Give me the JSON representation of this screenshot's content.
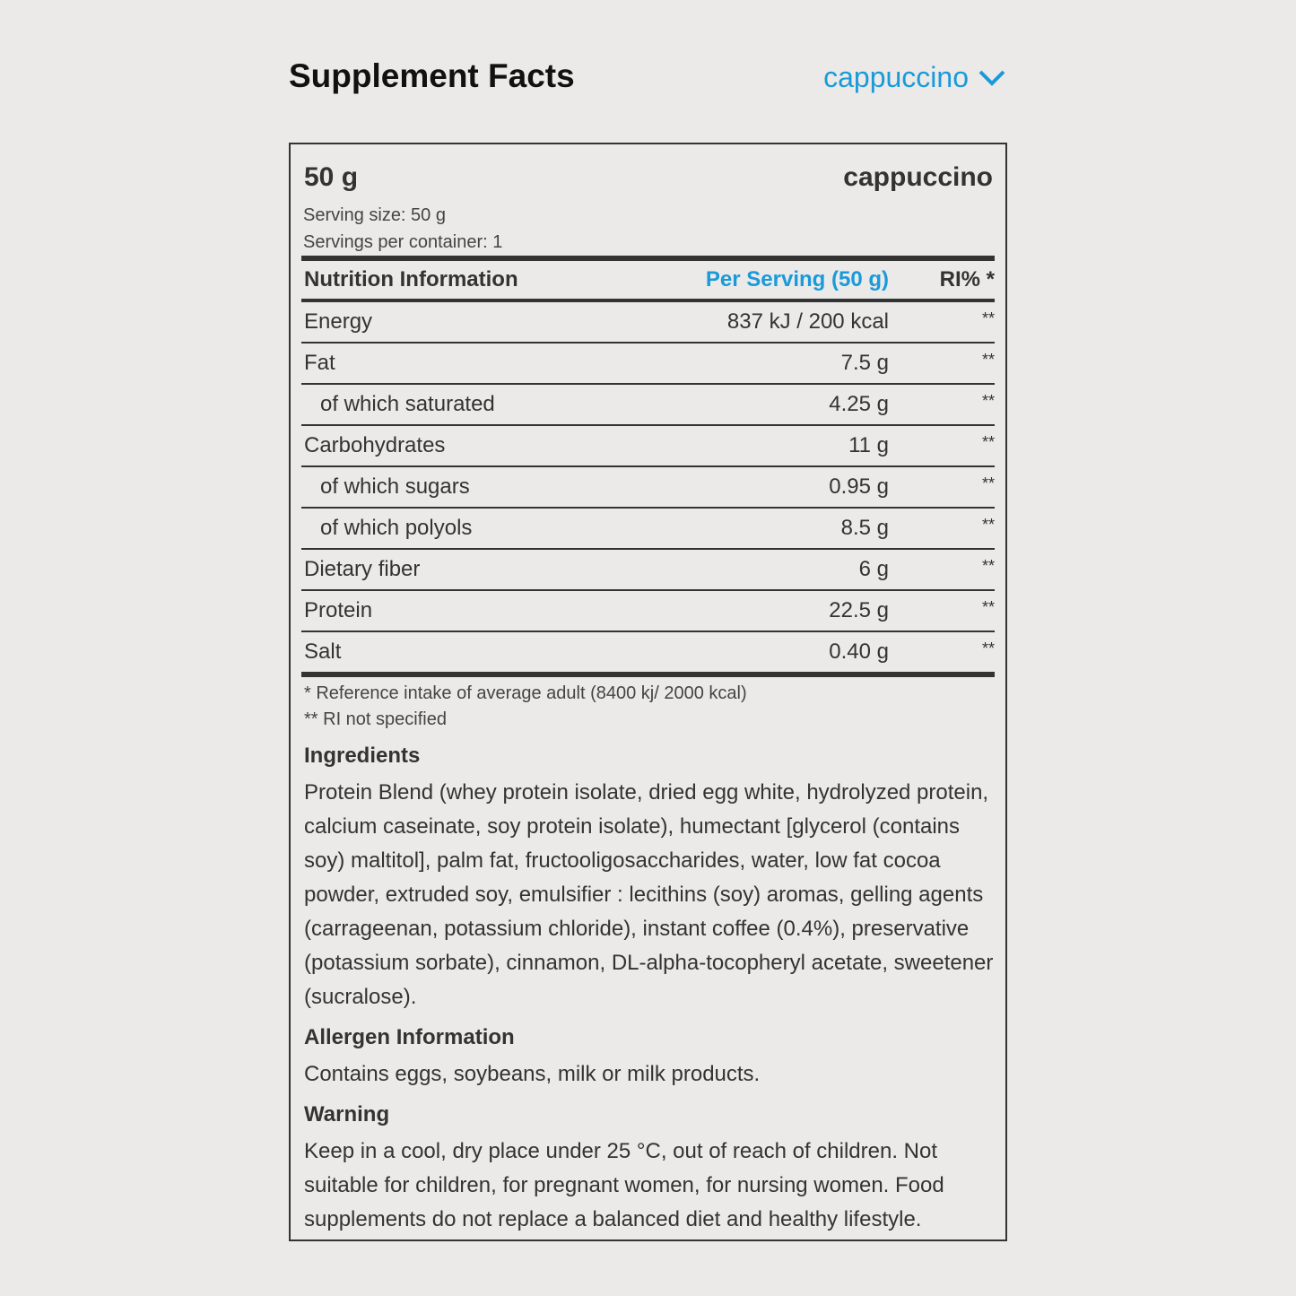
{
  "header": {
    "title": "Supplement Facts",
    "flavor_selector": "cappuccino"
  },
  "panel": {
    "size": "50 g",
    "flavor": "cappuccino",
    "serving_size": "Serving size: 50 g",
    "servings_per_container": "Servings per container: 1",
    "columns": [
      "Nutrition Information",
      "Per Serving (50 g)",
      "RI% *"
    ],
    "rows": [
      {
        "label": "Energy",
        "value": "837 kJ / 200 kcal",
        "ri": "**",
        "indent": false
      },
      {
        "label": "Fat",
        "value": "7.5 g",
        "ri": "**",
        "indent": false
      },
      {
        "label": "of which saturated",
        "value": "4.25 g",
        "ri": "**",
        "indent": true
      },
      {
        "label": "Carbohydrates",
        "value": "11 g",
        "ri": "**",
        "indent": false
      },
      {
        "label": "of which sugars",
        "value": "0.95 g",
        "ri": "**",
        "indent": true
      },
      {
        "label": "of which polyols",
        "value": "8.5 g",
        "ri": "**",
        "indent": true
      },
      {
        "label": "Dietary fiber",
        "value": "6 g",
        "ri": "**",
        "indent": false
      },
      {
        "label": "Protein",
        "value": "22.5 g",
        "ri": "**",
        "indent": false
      },
      {
        "label": "Salt",
        "value": "0.40 g",
        "ri": "**",
        "indent": false
      }
    ],
    "footnotes": [
      "* Reference intake of average adult (8400 kj/ 2000 kcal)",
      "** RI not specified"
    ],
    "ingredients_title": "Ingredients",
    "ingredients": "Protein Blend (whey protein isolate, dried egg white, hydrolyzed protein, calcium caseinate, soy protein isolate), humectant [glycerol (contains soy) maltitol], palm fat, fructooligosaccharides, water, low fat cocoa powder, extruded soy, emulsifier : lecithins (soy) aromas, gelling agents (carrageenan, potassium chloride), instant coffee (0.4%), preservative (potassium sorbate), cinnamon, DL-alpha-tocopheryl acetate, sweetener (sucralose).",
    "allergen_title": "Allergen Information",
    "allergen": "Contains eggs, soybeans, milk or milk products.",
    "warning_title": "Warning",
    "warning": "Keep in a cool, dry place under 25 °C, out of reach of children. Not suitable for children, for pregnant women, for nursing women. Food supplements do not replace a balanced diet and healthy lifestyle."
  },
  "colors": {
    "accent": "#1a9ad9",
    "text": "#333333",
    "background": "#ebeae9"
  }
}
